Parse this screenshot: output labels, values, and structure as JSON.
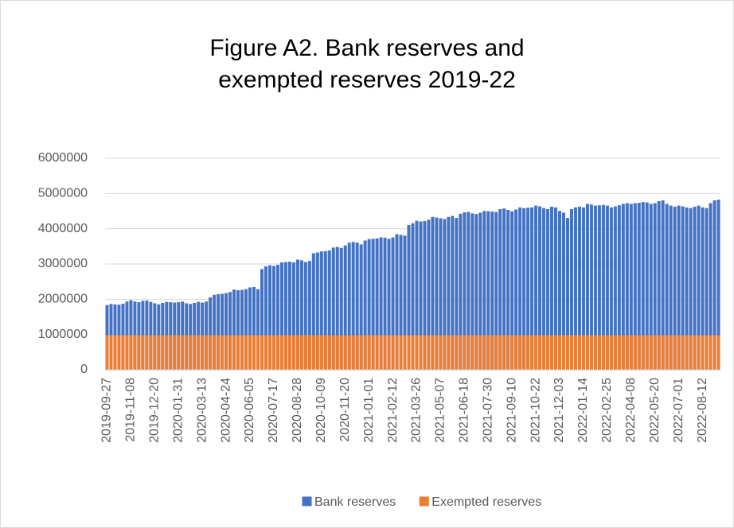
{
  "chart_data": {
    "type": "bar",
    "title": "Figure A2. Bank reserves and exempted reserves 2019-22",
    "categories": [
      "2019-09-27",
      null,
      null,
      null,
      null,
      null,
      "2019-11-08",
      null,
      null,
      null,
      null,
      null,
      "2019-12-20",
      null,
      null,
      null,
      null,
      null,
      "2020-01-31",
      null,
      null,
      null,
      null,
      null,
      "2020-03-13",
      null,
      null,
      null,
      null,
      null,
      "2020-04-24",
      null,
      null,
      null,
      null,
      null,
      "2020-06-05",
      null,
      null,
      null,
      null,
      null,
      "2020-07-17",
      null,
      null,
      null,
      null,
      null,
      "2020-08-28",
      null,
      null,
      null,
      null,
      null,
      "2020-10-09",
      null,
      null,
      null,
      null,
      null,
      "2020-11-20",
      null,
      null,
      null,
      null,
      null,
      "2021-01-01",
      null,
      null,
      null,
      null,
      null,
      "2021-02-12",
      null,
      null,
      null,
      null,
      null,
      "2021-03-26",
      null,
      null,
      null,
      null,
      null,
      "2021-05-07",
      null,
      null,
      null,
      null,
      null,
      "2021-06-18",
      null,
      null,
      null,
      null,
      null,
      "2021-07-30",
      null,
      null,
      null,
      null,
      null,
      "2021-09-10",
      null,
      null,
      null,
      null,
      null,
      "2021-10-22",
      null,
      null,
      null,
      null,
      null,
      "2021-12-03",
      null,
      null,
      null,
      null,
      null,
      "2022-01-14",
      null,
      null,
      null,
      null,
      null,
      "2022-02-25",
      null,
      null,
      null,
      null,
      null,
      "2022-04-08",
      null,
      null,
      null,
      null,
      null,
      "2022-05-20",
      null,
      null,
      null,
      null,
      null,
      "2022-07-01",
      null,
      null,
      null,
      null,
      null,
      "2022-08-12",
      null,
      null,
      null,
      null
    ],
    "series": [
      {
        "name": "Bank reserves",
        "color": "#4472c4",
        "values": [
          1830000,
          1860000,
          1850000,
          1840000,
          1870000,
          1930000,
          1970000,
          1930000,
          1910000,
          1950000,
          1960000,
          1920000,
          1880000,
          1850000,
          1890000,
          1920000,
          1910000,
          1900000,
          1910000,
          1930000,
          1880000,
          1860000,
          1890000,
          1920000,
          1900000,
          1930000,
          2050000,
          2120000,
          2140000,
          2150000,
          2170000,
          2200000,
          2270000,
          2250000,
          2260000,
          2280000,
          2330000,
          2340000,
          2280000,
          2850000,
          2930000,
          2960000,
          2940000,
          2970000,
          3040000,
          3050000,
          3060000,
          3040000,
          3120000,
          3100000,
          3050000,
          3080000,
          3300000,
          3320000,
          3350000,
          3360000,
          3380000,
          3460000,
          3480000,
          3450000,
          3520000,
          3600000,
          3620000,
          3600000,
          3550000,
          3660000,
          3700000,
          3710000,
          3720000,
          3750000,
          3740000,
          3710000,
          3750000,
          3840000,
          3820000,
          3800000,
          4100000,
          4150000,
          4220000,
          4200000,
          4210000,
          4250000,
          4330000,
          4310000,
          4290000,
          4270000,
          4330000,
          4360000,
          4300000,
          4420000,
          4460000,
          4470000,
          4430000,
          4410000,
          4450000,
          4500000,
          4490000,
          4480000,
          4470000,
          4550000,
          4570000,
          4530000,
          4490000,
          4540000,
          4600000,
          4580000,
          4590000,
          4600000,
          4650000,
          4630000,
          4580000,
          4550000,
          4620000,
          4600000,
          4500000,
          4450000,
          4300000,
          4550000,
          4600000,
          4620000,
          4600000,
          4700000,
          4680000,
          4650000,
          4660000,
          4670000,
          4650000,
          4600000,
          4630000,
          4660000,
          4700000,
          4720000,
          4700000,
          4720000,
          4730000,
          4750000,
          4740000,
          4700000,
          4720000,
          4780000,
          4800000,
          4700000,
          4650000,
          4620000,
          4650000,
          4630000,
          4600000,
          4580000,
          4620000,
          4650000,
          4600000,
          4580000,
          4720000,
          4800000,
          4820000
        ]
      },
      {
        "name": "Exempted reserves",
        "color": "#ed7d31",
        "values": [
          975000,
          975000,
          975000,
          975000,
          975000,
          975000,
          975000,
          975000,
          975000,
          975000,
          975000,
          975000,
          975000,
          975000,
          975000,
          975000,
          975000,
          975000,
          975000,
          975000,
          975000,
          975000,
          975000,
          975000,
          975000,
          975000,
          975000,
          975000,
          975000,
          975000,
          975000,
          975000,
          975000,
          975000,
          975000,
          975000,
          975000,
          975000,
          975000,
          975000,
          975000,
          975000,
          975000,
          975000,
          975000,
          975000,
          975000,
          975000,
          975000,
          975000,
          975000,
          975000,
          975000,
          975000,
          975000,
          975000,
          975000,
          975000,
          975000,
          975000,
          975000,
          975000,
          975000,
          975000,
          975000,
          975000,
          975000,
          975000,
          975000,
          975000,
          975000,
          975000,
          975000,
          975000,
          975000,
          975000,
          975000,
          975000,
          975000,
          975000,
          975000,
          975000,
          975000,
          975000,
          975000,
          975000,
          975000,
          975000,
          975000,
          975000,
          975000,
          975000,
          975000,
          975000,
          975000,
          975000,
          975000,
          975000,
          975000,
          975000,
          975000,
          975000,
          975000,
          975000,
          975000,
          975000,
          975000,
          975000,
          975000,
          975000,
          975000,
          975000,
          975000,
          975000,
          975000,
          975000,
          975000,
          975000,
          975000,
          975000,
          975000,
          975000,
          975000,
          975000,
          975000,
          975000,
          975000,
          975000,
          975000,
          975000,
          975000,
          975000,
          975000,
          975000,
          975000,
          975000,
          975000,
          975000,
          975000,
          975000,
          975000,
          975000,
          975000,
          975000,
          975000,
          975000,
          975000,
          975000,
          975000,
          975000,
          975000,
          975000,
          975000,
          975000,
          975000
        ]
      }
    ],
    "ylim": [
      0,
      6000000
    ],
    "yticks": [
      0,
      1000000,
      2000000,
      3000000,
      4000000,
      5000000,
      6000000
    ],
    "grid": true,
    "legend": "bottom"
  }
}
